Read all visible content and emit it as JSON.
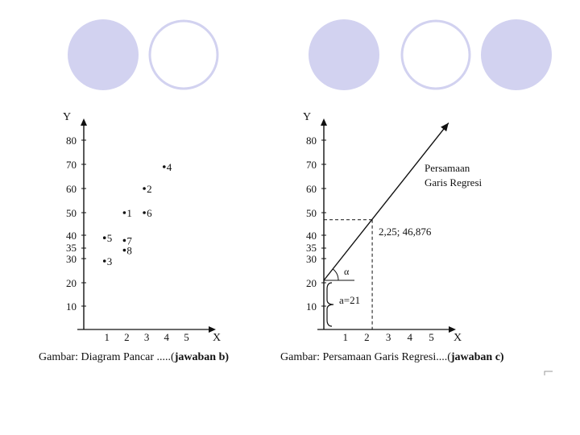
{
  "chart_data": [
    {
      "type": "scatter",
      "title": "",
      "xlabel": "X",
      "ylabel": "Y",
      "x_ticks": [
        "1",
        "2",
        "3",
        "4",
        "5"
      ],
      "y_ticks": [
        "10",
        "20",
        "30",
        "35",
        "40",
        "50",
        "60",
        "70",
        "80"
      ],
      "points": [
        {
          "label": "1",
          "x": 2.0,
          "y": 50
        },
        {
          "label": "2",
          "x": 3.0,
          "y": 60
        },
        {
          "label": "3",
          "x": 1.0,
          "y": 29
        },
        {
          "label": "4",
          "x": 4.0,
          "y": 69
        },
        {
          "label": "5",
          "x": 1.0,
          "y": 39
        },
        {
          "label": "6",
          "x": 3.0,
          "y": 50
        },
        {
          "label": "7",
          "x": 2.0,
          "y": 38
        },
        {
          "label": "8",
          "x": 2.0,
          "y": 34
        }
      ],
      "caption_plain": "Gambar: Diagram Pancar .....(",
      "caption_bold": "jawaban b)"
    },
    {
      "type": "line",
      "title": "",
      "xlabel": "X",
      "ylabel": "Y",
      "x_ticks": [
        "1",
        "2",
        "3",
        "4",
        "5"
      ],
      "y_ticks": [
        "10",
        "20",
        "30",
        "35",
        "40",
        "50",
        "60",
        "70",
        "80"
      ],
      "line": {
        "x": [
          0,
          5.8
        ],
        "y": [
          21,
          87.4
        ]
      },
      "marked_point": {
        "x": 2.25,
        "y": 46.876,
        "label": "2,25; 46,876"
      },
      "intercept_label": "a=21",
      "angle_label": "α",
      "line_label": [
        "Persamaan",
        "Garis Regresi"
      ],
      "caption_plain": "Gambar: Persamaan Garis Regresi....(",
      "caption_bold": "jawaban c)"
    }
  ]
}
